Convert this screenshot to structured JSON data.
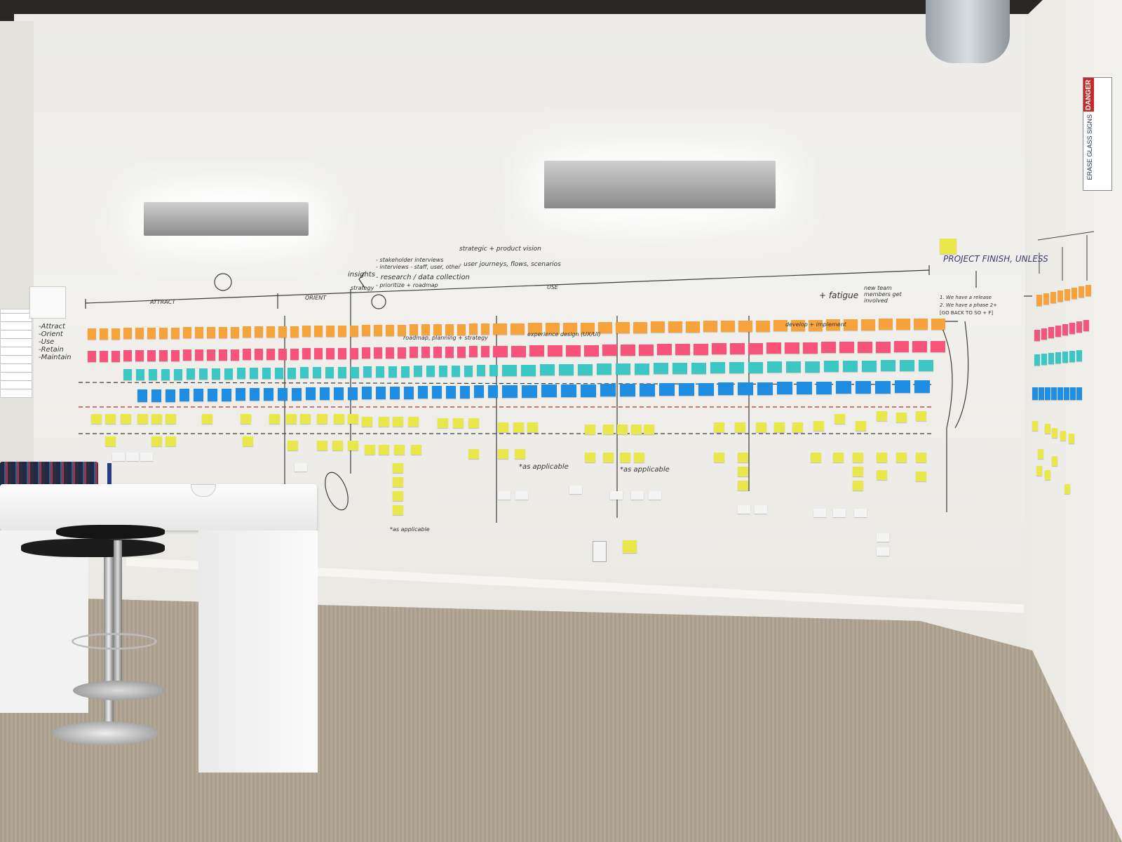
{
  "colors": {
    "orange": "#f7a33c",
    "pink": "#f8537a",
    "teal": "#3cc6c4",
    "blue": "#1f8de2",
    "yellow": "#e8e84a",
    "white_note": "#f4f4f4"
  },
  "phases": {
    "attract": "ATTRACT",
    "orient": "ORIENT",
    "use": "USE",
    "project_finish": "PROJECT FINISH, UNLESS"
  },
  "side_list": [
    "-Attract",
    "-Orient",
    "-Use",
    "-Retain",
    "-Maintain"
  ],
  "top_notes": {
    "insights": "insights",
    "stakeholder": "- stakeholder interviews",
    "interviews": "- interviews - staff, user, other",
    "research": "- research / data collection",
    "prioritize": "- prioritize + roadmap",
    "strategic": "strategic + product vision",
    "user_journeys": "- user journeys, flows, scenarios",
    "planning": "strategy"
  },
  "lane_labels": {
    "planning": "roadmap, planning + strategy",
    "experience": "experience design (UX/UI)",
    "develop": "develop + implement"
  },
  "annotations": {
    "fatigue": "+ fatigue",
    "new_team": "new team members get involved",
    "as_applicable_1": "*as applicable",
    "as_applicable_2": "*as applicable",
    "as_applicable_3": "*as applicable",
    "release_1": "1. We have a release",
    "release_2": "2. We have a phase 2+",
    "go_back": "[GO BACK TO SO + F]"
  },
  "sign": {
    "header": "DANGER",
    "body": "ERASE GLASS SIGNS"
  }
}
